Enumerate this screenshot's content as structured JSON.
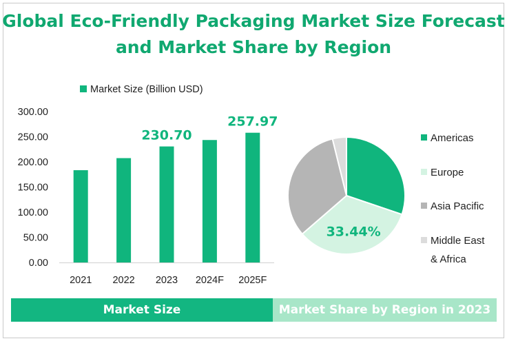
{
  "title": {
    "line1": "Global Eco-Friendly Packaging Market Size Forecast",
    "line2": "and Market Share by Region"
  },
  "colors": {
    "accent": "#10b57d",
    "title": "#10a870",
    "light_green": "#d4f3e2",
    "gray": "#b5b5b5",
    "light_gray": "#dcdcdc",
    "band_left": "#13b681",
    "band_right": "#a8e6c8"
  },
  "chart_data": [
    {
      "type": "bar",
      "legend": "Market Size (Billion USD)",
      "categories": [
        "2021",
        "2022",
        "2023",
        "2024F",
        "2025F"
      ],
      "values": [
        183.5,
        207.5,
        230.7,
        243.5,
        257.97
      ],
      "data_labels": [
        {
          "index": 2,
          "text": "230.70"
        },
        {
          "index": 4,
          "text": "257.97"
        }
      ],
      "ylim": [
        0,
        300
      ],
      "y_ticks": [
        "0.00",
        "50.00",
        "100.00",
        "150.00",
        "200.00",
        "250.00",
        "300.00"
      ],
      "y_tick_values": [
        0,
        50,
        100,
        150,
        200,
        250,
        300
      ],
      "grid": false,
      "legend_position": "top"
    },
    {
      "type": "pie",
      "legend_position": "right",
      "slices": [
        {
          "name": "Americas",
          "value": 30.2
        },
        {
          "name": "Europe",
          "value": 33.44,
          "label": "33.44%"
        },
        {
          "name": "Asia Pacific",
          "value": 32.5
        },
        {
          "name": "Middle East & Africa",
          "value": 3.86
        }
      ],
      "legend": [
        {
          "line1": "Americas",
          "line2": ""
        },
        {
          "line1": "Europe",
          "line2": ""
        },
        {
          "line1": "Asia Pacific",
          "line2": ""
        },
        {
          "line1": "Middle East",
          "line2": "& Africa"
        }
      ]
    }
  ],
  "footer": {
    "left_label": "Market Size",
    "right_label": "Market Share by Region in 2023"
  }
}
